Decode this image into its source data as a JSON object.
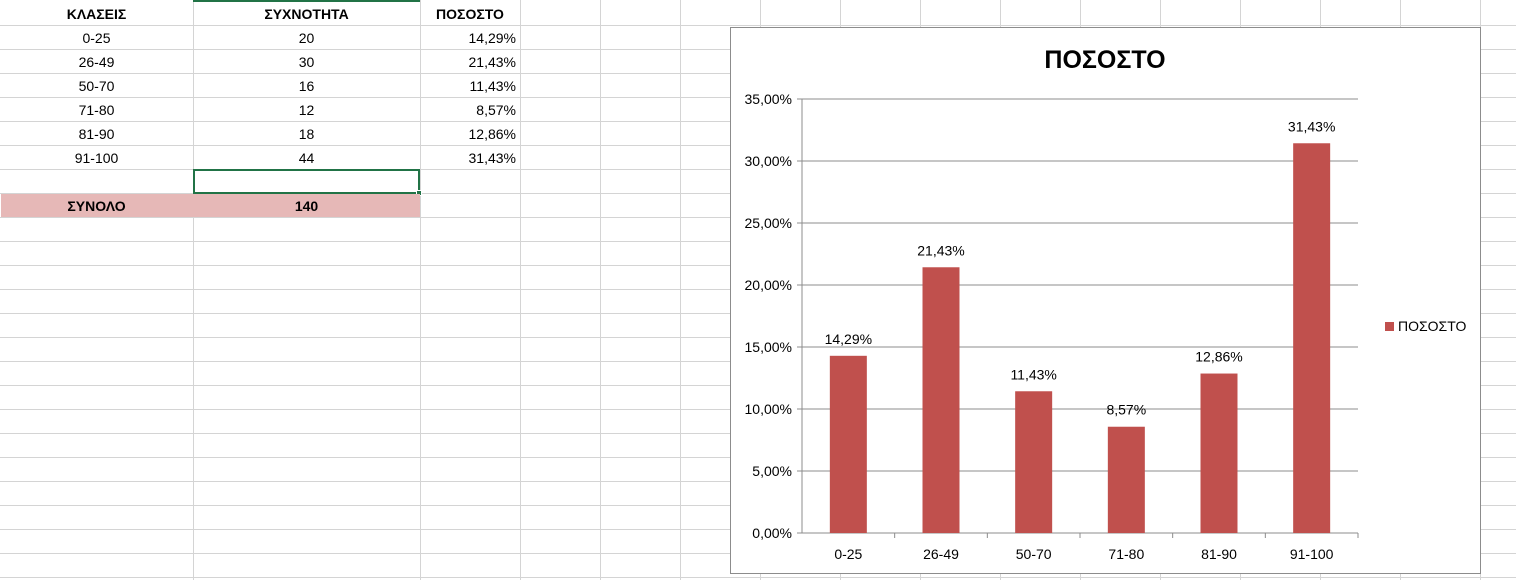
{
  "table": {
    "headers": [
      "ΚΛΑΣΕΙΣ",
      "ΣΥΧΝΟΤΗΤΑ",
      "ΠΟΣΟΣΤΟ"
    ],
    "rows": [
      {
        "klass": "0-25",
        "freq": "20",
        "pct": "14,29%"
      },
      {
        "klass": "26-49",
        "freq": "30",
        "pct": "21,43%"
      },
      {
        "klass": "50-70",
        "freq": "16",
        "pct": "11,43%"
      },
      {
        "klass": "71-80",
        "freq": "12",
        "pct": "8,57%"
      },
      {
        "klass": "81-90",
        "freq": "18",
        "pct": "12,86%"
      },
      {
        "klass": "91-100",
        "freq": "44",
        "pct": "31,43%"
      }
    ],
    "total_label": "ΣΥΝΟΛΟ",
    "total_value": "140",
    "total_fill": "#e6b8b7"
  },
  "chart_data": {
    "type": "bar",
    "title": "ΠΟΣΟΣΤΟ",
    "categories": [
      "0-25",
      "26-49",
      "50-70",
      "71-80",
      "81-90",
      "91-100"
    ],
    "series": [
      {
        "name": "ΠΟΣΟΣΤΟ",
        "values": [
          14.29,
          21.43,
          11.43,
          8.57,
          12.86,
          31.43
        ],
        "labels": [
          "14,29%",
          "21,43%",
          "11,43%",
          "8,57%",
          "12,86%",
          "31,43%"
        ],
        "color": "#c0504d"
      }
    ],
    "ylim": [
      0,
      35
    ],
    "yticks": [
      "0,00%",
      "5,00%",
      "10,00%",
      "15,00%",
      "20,00%",
      "25,00%",
      "30,00%",
      "35,00%"
    ],
    "grid": true,
    "legend": "right"
  },
  "colors": {
    "selection": "#217346",
    "gridline": "#d4d4d4"
  }
}
